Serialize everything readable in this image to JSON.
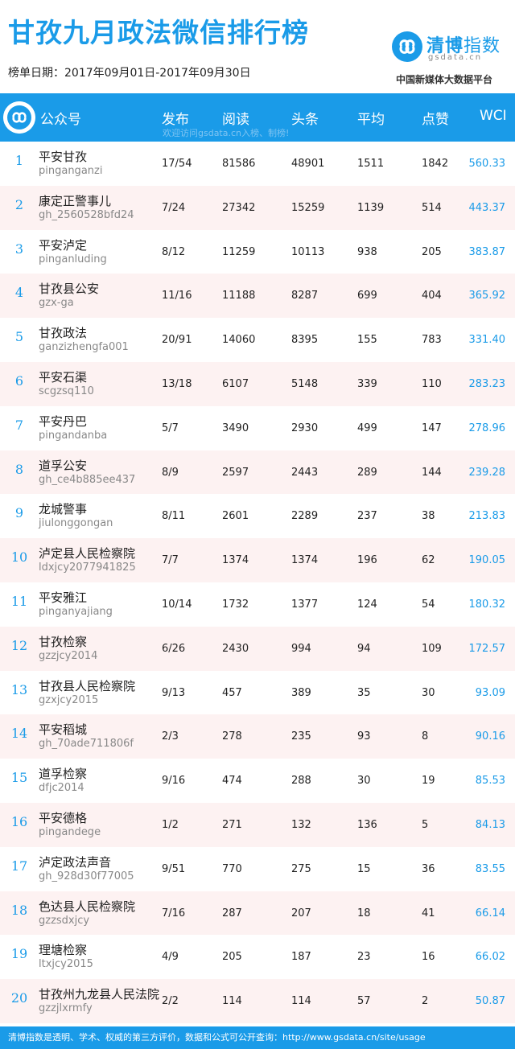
{
  "header": {
    "title": "甘孜九月政法微信排行榜",
    "date_label": "榜单日期：2017年09月01日-2017年09月30日"
  },
  "brand": {
    "name_main": "清博",
    "name_accent": "指数",
    "domain": "gsdata.cn",
    "slogan": "中国新媒体大数据平台",
    "logo_icon": "infinity-loop-icon",
    "color": "#1a9be8"
  },
  "table": {
    "columns": {
      "account": "公众号",
      "publish": "发布",
      "reads": "阅读",
      "headline": "头条",
      "average": "平均",
      "likes": "点赞",
      "wci": "WCI"
    },
    "notice": "欢迎访问gsdata.cn入榜、制榜!",
    "rows": [
      {
        "rank": "1",
        "name": "平安甘孜",
        "account": "pinganganzi",
        "publish": "17/54",
        "reads": "81586",
        "headline": "48901",
        "average": "1511",
        "likes": "1842",
        "wci": "560.33"
      },
      {
        "rank": "2",
        "name": "康定正警事儿",
        "account": "gh_2560528bfd24",
        "publish": "7/24",
        "reads": "27342",
        "headline": "15259",
        "average": "1139",
        "likes": "514",
        "wci": "443.37"
      },
      {
        "rank": "3",
        "name": "平安泸定",
        "account": "pinganluding",
        "publish": "8/12",
        "reads": "11259",
        "headline": "10113",
        "average": "938",
        "likes": "205",
        "wci": "383.87"
      },
      {
        "rank": "4",
        "name": "甘孜县公安",
        "account": "gzx-ga",
        "publish": "11/16",
        "reads": "11188",
        "headline": "8287",
        "average": "699",
        "likes": "404",
        "wci": "365.92"
      },
      {
        "rank": "5",
        "name": "甘孜政法",
        "account": "ganzizhengfa001",
        "publish": "20/91",
        "reads": "14060",
        "headline": "8395",
        "average": "155",
        "likes": "783",
        "wci": "331.40"
      },
      {
        "rank": "6",
        "name": "平安石渠",
        "account": "scgzsq110",
        "publish": "13/18",
        "reads": "6107",
        "headline": "5148",
        "average": "339",
        "likes": "110",
        "wci": "283.23"
      },
      {
        "rank": "7",
        "name": "平安丹巴",
        "account": "pingandanba",
        "publish": "5/7",
        "reads": "3490",
        "headline": "2930",
        "average": "499",
        "likes": "147",
        "wci": "278.96"
      },
      {
        "rank": "8",
        "name": "道孚公安",
        "account": "gh_ce4b885ee437",
        "publish": "8/9",
        "reads": "2597",
        "headline": "2443",
        "average": "289",
        "likes": "144",
        "wci": "239.28"
      },
      {
        "rank": "9",
        "name": "龙城警事",
        "account": "jiulonggongan",
        "publish": "8/11",
        "reads": "2601",
        "headline": "2289",
        "average": "237",
        "likes": "38",
        "wci": "213.83"
      },
      {
        "rank": "10",
        "name": "泸定县人民检察院",
        "account": "ldxjcy2077941825",
        "publish": "7/7",
        "reads": "1374",
        "headline": "1374",
        "average": "196",
        "likes": "62",
        "wci": "190.05"
      },
      {
        "rank": "11",
        "name": "平安雅江",
        "account": "pinganyajiang",
        "publish": "10/14",
        "reads": "1732",
        "headline": "1377",
        "average": "124",
        "likes": "54",
        "wci": "180.32"
      },
      {
        "rank": "12",
        "name": "甘孜检察",
        "account": "gzzjcy2014",
        "publish": "6/26",
        "reads": "2430",
        "headline": "994",
        "average": "94",
        "likes": "109",
        "wci": "172.57"
      },
      {
        "rank": "13",
        "name": "甘孜县人民检察院",
        "account": "gzxjcy2015",
        "publish": "9/13",
        "reads": "457",
        "headline": "389",
        "average": "35",
        "likes": "30",
        "wci": "93.09"
      },
      {
        "rank": "14",
        "name": "平安稻城",
        "account": "gh_70ade711806f",
        "publish": "2/3",
        "reads": "278",
        "headline": "235",
        "average": "93",
        "likes": "8",
        "wci": "90.16"
      },
      {
        "rank": "15",
        "name": "道孚检察",
        "account": "dfjc2014",
        "publish": "9/16",
        "reads": "474",
        "headline": "288",
        "average": "30",
        "likes": "19",
        "wci": "85.53"
      },
      {
        "rank": "16",
        "name": "平安德格",
        "account": "pingandege",
        "publish": "1/2",
        "reads": "271",
        "headline": "132",
        "average": "136",
        "likes": "5",
        "wci": "84.13"
      },
      {
        "rank": "17",
        "name": "泸定政法声音",
        "account": "gh_928d30f77005",
        "publish": "9/51",
        "reads": "770",
        "headline": "275",
        "average": "15",
        "likes": "36",
        "wci": "83.55"
      },
      {
        "rank": "18",
        "name": "色达县人民检察院",
        "account": "gzzsdxjcy",
        "publish": "7/16",
        "reads": "287",
        "headline": "207",
        "average": "18",
        "likes": "41",
        "wci": "66.14"
      },
      {
        "rank": "19",
        "name": "理塘检察",
        "account": "ltxjcy2015",
        "publish": "4/9",
        "reads": "205",
        "headline": "187",
        "average": "23",
        "likes": "16",
        "wci": "66.02"
      },
      {
        "rank": "20",
        "name": "甘孜州九龙县人民法院",
        "account": "gzzjlxrmfy",
        "publish": "2/2",
        "reads": "114",
        "headline": "114",
        "average": "57",
        "likes": "2",
        "wci": "50.87"
      }
    ]
  },
  "footer": {
    "text": "清博指数是透明、学术、权威的第三方评价，数据和公式可公开查询：http://www.gsdata.cn/site/usage"
  }
}
